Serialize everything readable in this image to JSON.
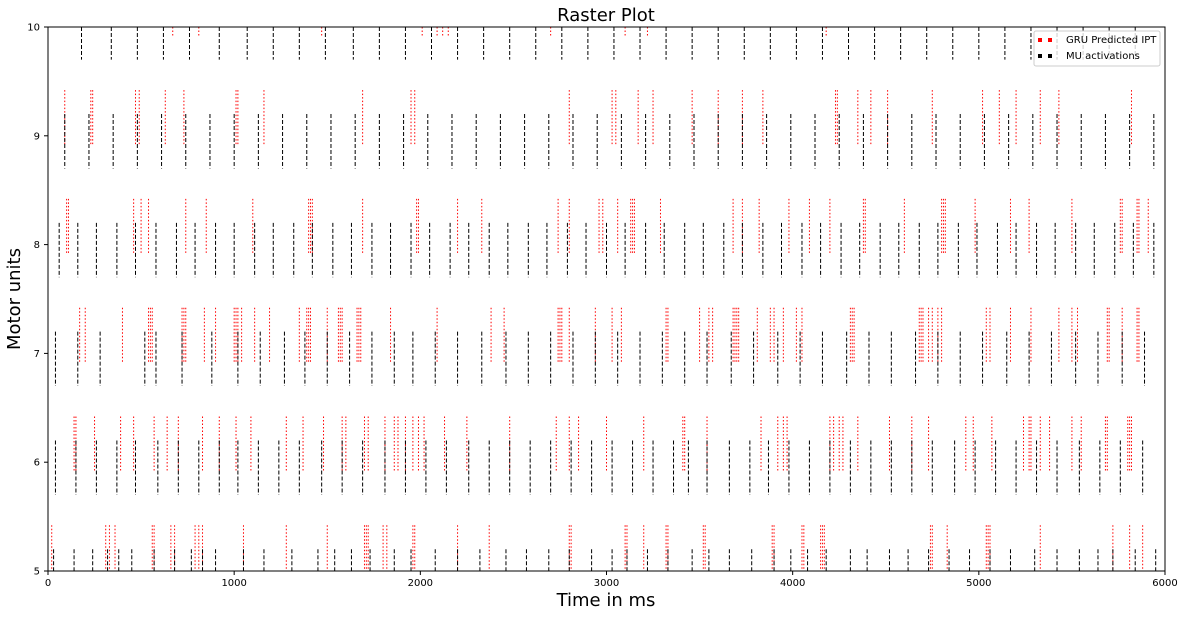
{
  "chart_data": {
    "type": "scatter",
    "title": "Raster Plot",
    "xlabel": "Time in ms",
    "ylabel": "Motor units",
    "xlim": [
      0,
      6000
    ],
    "ylim": [
      5,
      10
    ],
    "x_ticks": [
      0,
      1000,
      2000,
      3000,
      4000,
      5000,
      6000
    ],
    "y_ticks": [
      5,
      6,
      7,
      8,
      9,
      10
    ],
    "grid": false,
    "legend_position": "top-right",
    "series": [
      {
        "name": "GRU Predicted IPT",
        "color": "#ff0000",
        "style": "dotted",
        "units": [
          {
            "unit": 5,
            "spikes": [
              20,
              310,
              330,
              360,
              560,
              570,
              660,
              680,
              790,
              810,
              830,
              1050,
              1280,
              1500,
              1700,
              1710,
              1720,
              1800,
              1820,
              1960,
              1970,
              2200,
              2370,
              2800,
              2810,
              3100,
              3110,
              3200,
              3320,
              3330,
              3520,
              3530,
              3890,
              3900,
              4050,
              4060,
              4150,
              4160,
              4170,
              4740,
              4750,
              4830,
              5040,
              5050,
              5060,
              5330,
              5720,
              5810,
              5880
            ]
          },
          {
            "unit": 6,
            "spikes": [
              140,
              150,
              250,
              390,
              460,
              570,
              640,
              700,
              830,
              920,
              1010,
              1090,
              1280,
              1370,
              1480,
              1580,
              1600,
              1700,
              1720,
              1810,
              1860,
              1880,
              1920,
              1960,
              1990,
              2020,
              2130,
              2250,
              2480,
              2730,
              2800,
              2850,
              3000,
              3200,
              3410,
              3420,
              3540,
              3830,
              3920,
              3950,
              3970,
              4200,
              4220,
              4250,
              4270,
              4350,
              4520,
              4640,
              4730,
              4930,
              4970,
              5070,
              5240,
              5270,
              5280,
              5330,
              5380,
              5500,
              5550,
              5680,
              5690,
              5800,
              5810,
              5820
            ]
          },
          {
            "unit": 7,
            "spikes": [
              170,
              200,
              400,
              540,
              550,
              560,
              720,
              730,
              740,
              840,
              900,
              1000,
              1010,
              1020,
              1040,
              1110,
              1190,
              1350,
              1390,
              1400,
              1410,
              1500,
              1560,
              1570,
              1580,
              1660,
              1670,
              1680,
              1840,
              2090,
              2380,
              2450,
              2740,
              2750,
              2760,
              2800,
              2940,
              3030,
              3080,
              3320,
              3330,
              3500,
              3550,
              3570,
              3680,
              3690,
              3700,
              3710,
              3810,
              3880,
              3900,
              3950,
              4020,
              4050,
              4310,
              4320,
              4330,
              4680,
              4690,
              4700,
              4730,
              4750,
              4780,
              4800,
              5040,
              5060,
              5170,
              5280,
              5430,
              5500,
              5530,
              5690,
              5700,
              5770,
              5850,
              5860
            ]
          },
          {
            "unit": 8,
            "spikes": [
              100,
              110,
              460,
              500,
              540,
              740,
              850,
              1100,
              1400,
              1410,
              1420,
              1690,
              1980,
              1990,
              2200,
              2330,
              2740,
              2800,
              2960,
              2980,
              3060,
              3130,
              3140,
              3150,
              3290,
              3680,
              3730,
              3820,
              3980,
              4090,
              4200,
              4380,
              4390,
              4600,
              4800,
              4810,
              4820,
              4980,
              5170,
              5270,
              5500,
              5760,
              5770,
              5850,
              5860,
              5910
            ]
          },
          {
            "unit": 9,
            "spikes": [
              90,
              230,
              240,
              470,
              490,
              630,
              730,
              1010,
              1020,
              1160,
              1690,
              1950,
              1970,
              2800,
              3030,
              3050,
              3170,
              3250,
              3460,
              3600,
              3730,
              3840,
              4230,
              4240,
              4350,
              4420,
              4510,
              4750,
              5020,
              5110,
              5200,
              5330,
              5430,
              5820
            ]
          },
          {
            "unit": 10,
            "spikes": [
              670,
              810,
              1470,
              2010,
              2090,
              2120,
              2150,
              2700,
              3100,
              3220,
              4180
            ]
          }
        ]
      },
      {
        "name": "MU activations",
        "color": "#000000",
        "style": "dashed",
        "units": [
          {
            "unit": 5,
            "spikes": [
              30,
              140,
              240,
              320,
              380,
              450,
              570,
              680,
              770,
              830,
              900,
              1050,
              1160,
              1310,
              1450,
              1540,
              1630,
              1730,
              1860,
              1950,
              2080,
              2200,
              2320,
              2460,
              2570,
              2690,
              2800,
              2920,
              3030,
              3110,
              3220,
              3330,
              3460,
              3550,
              3660,
              3780,
              3900,
              3990,
              4080,
              4180,
              4310,
              4400,
              4520,
              4620,
              4730,
              4840,
              4950,
              5060,
              5170,
              5300,
              5420,
              5540,
              5640,
              5720,
              5840,
              5950
            ]
          },
          {
            "unit": 6,
            "spikes": [
              40,
              150,
              260,
              370,
              470,
              590,
              700,
              810,
              920,
              1020,
              1130,
              1240,
              1350,
              1470,
              1580,
              1690,
              1810,
              1920,
              2030,
              2140,
              2260,
              2370,
              2480,
              2590,
              2700,
              2810,
              2920,
              3030,
              3140,
              3250,
              3360,
              3440,
              3540,
              3660,
              3770,
              3870,
              3980,
              4090,
              4200,
              4310,
              4420,
              4530,
              4640,
              4750,
              4870,
              4980,
              5090,
              5200,
              5310,
              5420,
              5540,
              5650,
              5760,
              5880,
              6000
            ]
          },
          {
            "unit": 7,
            "spikes": [
              40,
              160,
              280,
              520,
              580,
              720,
              880,
              1020,
              1140,
              1270,
              1380,
              1500,
              1620,
              1740,
              1860,
              1960,
              2080,
              2200,
              2330,
              2460,
              2580,
              2700,
              2820,
              2940,
              3060,
              3180,
              3300,
              3420,
              3540,
              3670,
              3790,
              3920,
              4040,
              4160,
              4290,
              4410,
              4530,
              4660,
              4780,
              4900,
              5020,
              5150,
              5270,
              5390,
              5520,
              5640,
              5770,
              5890
            ]
          },
          {
            "unit": 8,
            "spikes": [
              60,
              160,
              260,
              370,
              470,
              580,
              690,
              790,
              900,
              1000,
              1110,
              1210,
              1320,
              1420,
              1530,
              1630,
              1740,
              1840,
              1950,
              2050,
              2160,
              2260,
              2370,
              2470,
              2580,
              2680,
              2790,
              2890,
              3000,
              3100,
              3210,
              3310,
              3420,
              3520,
              3630,
              3730,
              3840,
              3940,
              4050,
              4150,
              4260,
              4360,
              4470,
              4570,
              4680,
              4780,
              4890,
              4990,
              5100,
              5200,
              5310,
              5410,
              5520,
              5620,
              5730,
              5830,
              5940
            ]
          },
          {
            "unit": 9,
            "spikes": [
              90,
              220,
              350,
              480,
              610,
              740,
              870,
              1000,
              1130,
              1260,
              1390,
              1520,
              1650,
              1780,
              1910,
              2040,
              2170,
              2300,
              2430,
              2560,
              2690,
              2820,
              2950,
              3080,
              3210,
              3340,
              3470,
              3600,
              3730,
              3860,
              3990,
              4120,
              4250,
              4380,
              4510,
              4640,
              4770,
              4900,
              5030,
              5160,
              5290,
              5420,
              5550,
              5680,
              5810,
              5940
            ]
          },
          {
            "unit": 10,
            "spikes": [
              180,
              340,
              480,
              620,
              760,
              920,
              1070,
              1210,
              1350,
              1490,
              1640,
              1780,
              1920,
              2060,
              2200,
              2340,
              2480,
              2620,
              2760,
              2900,
              3040,
              3180,
              3320,
              3460,
              3600,
              3740,
              3880,
              4020,
              4160,
              4300,
              4440,
              4580,
              4720,
              4860,
              5000,
              5140,
              5280,
              5420,
              5560,
              5700,
              5840
            ]
          }
        ]
      }
    ]
  }
}
